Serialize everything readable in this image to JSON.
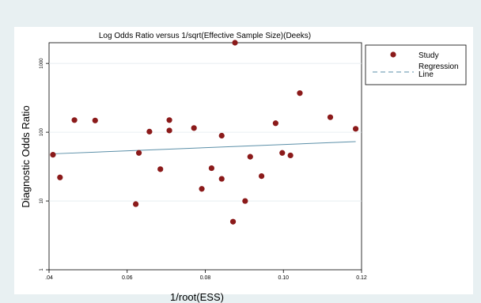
{
  "chart_data": {
    "type": "scatter",
    "title": "Log Odds Ratio versus 1/sqrt(Effective Sample Size)(Deeks)",
    "xlabel": "1/root(ESS)",
    "ylabel": "Diagnostic Odds Ratio",
    "x_scale": "linear",
    "y_scale": "log",
    "xlim": [
      0.04,
      0.12
    ],
    "ylim": [
      1,
      2000
    ],
    "x_ticks": [
      0.04,
      0.06,
      0.08,
      0.1,
      0.12
    ],
    "x_tick_labels": [
      ".04",
      "0.06",
      "0.08",
      "0.10",
      "0.12"
    ],
    "y_ticks": [
      1,
      10,
      100,
      1000
    ],
    "y_tick_labels": [
      "1",
      "10",
      "100",
      "1000"
    ],
    "grid": "horizontal",
    "legend": {
      "placement": "right",
      "entries": [
        {
          "label": "Study",
          "marker": "circle",
          "color": "#8b1a1a"
        },
        {
          "label": "Regression Line",
          "marker": "dashed-line",
          "color": "#5b8fa8"
        }
      ]
    },
    "series": [
      {
        "name": "Study",
        "color": "#8b1a1a",
        "points": [
          {
            "x": 0.041,
            "y": 47
          },
          {
            "x": 0.0428,
            "y": 22
          },
          {
            "x": 0.0465,
            "y": 150
          },
          {
            "x": 0.0518,
            "y": 148
          },
          {
            "x": 0.0622,
            "y": 9
          },
          {
            "x": 0.063,
            "y": 50
          },
          {
            "x": 0.0657,
            "y": 102
          },
          {
            "x": 0.0685,
            "y": 29
          },
          {
            "x": 0.0708,
            "y": 150
          },
          {
            "x": 0.0708,
            "y": 106
          },
          {
            "x": 0.0771,
            "y": 115
          },
          {
            "x": 0.0791,
            "y": 15
          },
          {
            "x": 0.0816,
            "y": 30
          },
          {
            "x": 0.0842,
            "y": 21
          },
          {
            "x": 0.0842,
            "y": 89
          },
          {
            "x": 0.0871,
            "y": 5
          },
          {
            "x": 0.0876,
            "y": 2000
          },
          {
            "x": 0.0902,
            "y": 10
          },
          {
            "x": 0.0915,
            "y": 44
          },
          {
            "x": 0.0944,
            "y": 23
          },
          {
            "x": 0.098,
            "y": 135
          },
          {
            "x": 0.0997,
            "y": 50
          },
          {
            "x": 0.1018,
            "y": 46
          },
          {
            "x": 0.1042,
            "y": 370
          },
          {
            "x": 0.112,
            "y": 165
          },
          {
            "x": 0.1185,
            "y": 112
          }
        ]
      },
      {
        "name": "Regression Line",
        "color": "#5b8fa8",
        "line": [
          {
            "x": 0.041,
            "y": 48.5
          },
          {
            "x": 0.1185,
            "y": 73
          }
        ]
      }
    ]
  }
}
